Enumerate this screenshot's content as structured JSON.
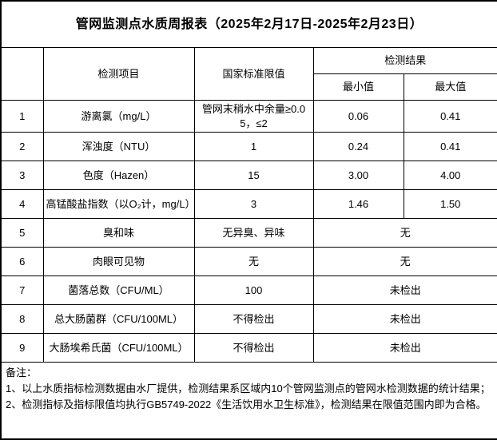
{
  "title": "管网监测点水质周报表（2025年2月17日-2025年2月23日）",
  "table": {
    "headers": {
      "index": "",
      "item": "检测项目",
      "standard": "国家标准限值",
      "result": "检测结果",
      "min": "最小值",
      "max": "最大值"
    },
    "rows": [
      {
        "no": "1",
        "item": "游离氯（mg/L）",
        "standard": "管网末稍水中余量≥0.05，≤2",
        "min": "0.06",
        "max": "0.41",
        "merged": false
      },
      {
        "no": "2",
        "item": "浑浊度（NTU）",
        "standard": "1",
        "min": "0.24",
        "max": "0.41",
        "merged": false
      },
      {
        "no": "3",
        "item": "色度（Hazen）",
        "standard": "15",
        "min": "3.00",
        "max": "4.00",
        "merged": false
      },
      {
        "no": "4",
        "item": "高锰酸盐指数（以O₂计，mg/L）",
        "standard": "3",
        "min": "1.46",
        "max": "1.50",
        "merged": false
      },
      {
        "no": "5",
        "item": "臭和味",
        "standard": "无异臭、异味",
        "result": "无",
        "merged": true
      },
      {
        "no": "6",
        "item": "肉眼可见物",
        "standard": "无",
        "result": "无",
        "merged": true
      },
      {
        "no": "7",
        "item": "菌落总数（CFU/ML）",
        "standard": "100",
        "result": "未检出",
        "merged": true
      },
      {
        "no": "8",
        "item": "总大肠菌群（CFU/100ML）",
        "standard": "不得检出",
        "result": "未检出",
        "merged": true
      },
      {
        "no": "9",
        "item": "大肠埃希氏菌（CFU/100ML）",
        "standard": "不得检出",
        "result": "未检出",
        "merged": true
      }
    ]
  },
  "notes": {
    "label": "备注：",
    "lines": [
      "1、以上水质指标检测数据由水厂提供，检测结果系区域内10个管网监测点的管网水检测数据的统计结果；",
      "2、检测指标及指标限值均执行GB5749-2022《生活饮用水卫生标准》，检测结果在限值范围内即为合格。"
    ]
  },
  "colors": {
    "border": "#000000",
    "background": "#ffffff",
    "text": "#000000"
  }
}
